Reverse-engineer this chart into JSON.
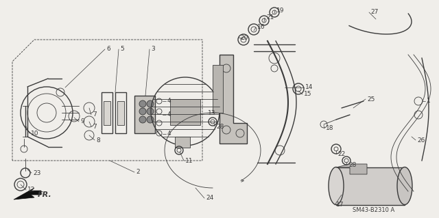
{
  "bg_color": "#f0eeea",
  "fig_width": 6.4,
  "fig_height": 3.19,
  "dpi": 100,
  "diagram_code": "SM43-B2310 A",
  "line_color": "#3a3a3a",
  "label_fontsize": 6.5,
  "label_color": "#111111"
}
